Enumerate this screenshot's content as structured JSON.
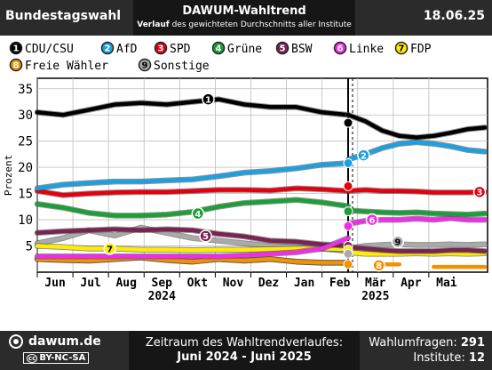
{
  "header": {
    "left": "Bundestagswahl",
    "title": "DAWUM-Wahltrend",
    "subtitle_bold": "Verlauf",
    "subtitle_rest": " des gewichteten Durchschnitts aller Institute",
    "date": "18.06.25"
  },
  "footer": {
    "site": "dawum.de",
    "license": "BY-NC-SA",
    "license_cc": "cc",
    "range_label": "Zeitraum des Wahltrendverlaufes:",
    "range": "Juni 2024 - Juni 2025",
    "polls_label": "Wahlumfragen:",
    "polls": "291",
    "institutes_label": "Institute:",
    "institutes": "12"
  },
  "chart_data": {
    "type": "line",
    "ylabel": "Prozent",
    "ylim": [
      0,
      37
    ],
    "yticks": [
      5,
      10,
      15,
      20,
      25,
      30,
      35
    ],
    "grid": true,
    "months": [
      "Jun",
      "Jul",
      "Aug",
      "Sep",
      "Okt",
      "Nov",
      "Dez",
      "Jan",
      "Feb",
      "Mär",
      "Apr",
      "Mai"
    ],
    "years": [
      {
        "label": "2024",
        "month": "Sep"
      },
      {
        "label": "2025",
        "month": "Mär"
      }
    ],
    "election_marker": "2025-02-23",
    "legend": [
      {
        "num": "1",
        "name": "CDU/CSU",
        "color": "#000000"
      },
      {
        "num": "2",
        "name": "AfD",
        "color": "#1ba1e2"
      },
      {
        "num": "3",
        "name": "SPD",
        "color": "#e3000f"
      },
      {
        "num": "4",
        "name": "Grüne",
        "color": "#1aa037"
      },
      {
        "num": "5",
        "name": "BSW",
        "color": "#792351"
      },
      {
        "num": "6",
        "name": "Linke",
        "color": "#ee2ee8"
      },
      {
        "num": "7",
        "name": "FDP",
        "color": "#ffed00"
      },
      {
        "num": "8",
        "name": "Freie Wähler",
        "color": "#f39200"
      },
      {
        "num": "9",
        "name": "Sonstige",
        "color": "#aaaaaa"
      }
    ],
    "series": [
      {
        "num": "1",
        "name": "CDU/CSU",
        "color": "#000000",
        "result": 28.5,
        "pre": [
          [
            0,
            30.5
          ],
          [
            1,
            30.0
          ],
          [
            2,
            31.0
          ],
          [
            3,
            32.0
          ],
          [
            4,
            32.3
          ],
          [
            5,
            32.0
          ],
          [
            6,
            32.5
          ],
          [
            7,
            33.0
          ],
          [
            8,
            32.0
          ],
          [
            9,
            31.5
          ],
          [
            10,
            31.5
          ],
          [
            11,
            30.5
          ],
          [
            12,
            30.0
          ]
        ],
        "post": [
          [
            0,
            30.0
          ],
          [
            1,
            28.8
          ],
          [
            2,
            27.0
          ],
          [
            3,
            26.0
          ],
          [
            4,
            25.7
          ],
          [
            5,
            26.0
          ],
          [
            6,
            26.6
          ],
          [
            7,
            27.3
          ],
          [
            8,
            27.6
          ]
        ]
      },
      {
        "num": "2",
        "name": "AfD",
        "color": "#1ba1e2",
        "result": 20.8,
        "pre": [
          [
            0,
            16.0
          ],
          [
            1,
            16.7
          ],
          [
            2,
            17.0
          ],
          [
            3,
            17.3
          ],
          [
            4,
            17.3
          ],
          [
            5,
            17.5
          ],
          [
            6,
            17.7
          ],
          [
            7,
            18.3
          ],
          [
            8,
            19.0
          ],
          [
            9,
            19.3
          ],
          [
            10,
            19.8
          ],
          [
            11,
            20.5
          ],
          [
            12,
            20.8
          ]
        ],
        "post": [
          [
            0,
            21.5
          ],
          [
            1,
            22.5
          ],
          [
            2,
            23.7
          ],
          [
            3,
            24.5
          ],
          [
            4,
            24.8
          ],
          [
            5,
            24.5
          ],
          [
            6,
            24.0
          ],
          [
            7,
            23.3
          ],
          [
            8,
            23.0
          ]
        ]
      },
      {
        "num": "3",
        "name": "SPD",
        "color": "#e3000f",
        "result": 16.4,
        "pre": [
          [
            0,
            15.5
          ],
          [
            1,
            14.7
          ],
          [
            2,
            15.0
          ],
          [
            3,
            15.2
          ],
          [
            4,
            15.3
          ],
          [
            5,
            15.3
          ],
          [
            6,
            15.5
          ],
          [
            7,
            15.7
          ],
          [
            8,
            15.7
          ],
          [
            9,
            15.6
          ],
          [
            10,
            16.0
          ],
          [
            11,
            15.8
          ],
          [
            12,
            15.5
          ]
        ],
        "post": [
          [
            0,
            15.5
          ],
          [
            1,
            15.7
          ],
          [
            2,
            15.5
          ],
          [
            3,
            15.5
          ],
          [
            4,
            15.4
          ],
          [
            5,
            15.2
          ],
          [
            6,
            15.2
          ],
          [
            7,
            15.2
          ],
          [
            8,
            15.3
          ]
        ]
      },
      {
        "num": "4",
        "name": "Grüne",
        "color": "#1aa037",
        "result": 11.6,
        "pre": [
          [
            0,
            13.0
          ],
          [
            1,
            12.3
          ],
          [
            2,
            11.3
          ],
          [
            3,
            10.8
          ],
          [
            4,
            10.8
          ],
          [
            5,
            11.0
          ],
          [
            6,
            11.5
          ],
          [
            7,
            12.5
          ],
          [
            8,
            13.2
          ],
          [
            9,
            13.5
          ],
          [
            10,
            13.8
          ],
          [
            11,
            13.3
          ],
          [
            12,
            12.6
          ]
        ],
        "post": [
          [
            0,
            11.8
          ],
          [
            1,
            11.6
          ],
          [
            2,
            11.4
          ],
          [
            3,
            11.3
          ],
          [
            4,
            11.4
          ],
          [
            5,
            11.2
          ],
          [
            6,
            11.1
          ],
          [
            7,
            11.0
          ],
          [
            8,
            11.2
          ]
        ]
      },
      {
        "num": "5",
        "name": "BSW",
        "color": "#792351",
        "result": 5.0,
        "pre": [
          [
            0,
            7.5
          ],
          [
            1,
            7.8
          ],
          [
            2,
            8.0
          ],
          [
            3,
            8.2
          ],
          [
            4,
            8.0
          ],
          [
            5,
            8.2
          ],
          [
            6,
            8.0
          ],
          [
            7,
            7.3
          ],
          [
            8,
            6.8
          ],
          [
            9,
            6.0
          ],
          [
            10,
            5.8
          ],
          [
            11,
            5.3
          ],
          [
            12,
            5.0
          ]
        ],
        "post": [
          [
            0,
            4.8
          ],
          [
            1,
            4.5
          ],
          [
            2,
            4.2
          ],
          [
            3,
            4.0
          ],
          [
            4,
            4.0
          ],
          [
            5,
            4.0
          ],
          [
            6,
            4.2
          ],
          [
            7,
            4.2
          ],
          [
            8,
            4.0
          ]
        ]
      },
      {
        "num": "6",
        "name": "Linke",
        "color": "#ee2ee8",
        "result": 8.8,
        "pre": [
          [
            0,
            3.0
          ],
          [
            1,
            3.0
          ],
          [
            2,
            3.0
          ],
          [
            3,
            3.0
          ],
          [
            4,
            3.0
          ],
          [
            5,
            3.0
          ],
          [
            6,
            3.0
          ],
          [
            7,
            3.0
          ],
          [
            8,
            3.2
          ],
          [
            9,
            3.5
          ],
          [
            10,
            3.8
          ],
          [
            11,
            4.5
          ],
          [
            12,
            6.5
          ]
        ],
        "post": [
          [
            0,
            9.2
          ],
          [
            1,
            9.8
          ],
          [
            2,
            10.0
          ],
          [
            3,
            10.0
          ],
          [
            4,
            10.2
          ],
          [
            5,
            10.0
          ],
          [
            6,
            10.3
          ],
          [
            7,
            10.0
          ],
          [
            8,
            10.0
          ]
        ]
      },
      {
        "num": "7",
        "name": "FDP",
        "color": "#ffed00",
        "result": 4.3,
        "pre": [
          [
            0,
            5.0
          ],
          [
            1,
            4.8
          ],
          [
            2,
            4.5
          ],
          [
            3,
            4.5
          ],
          [
            4,
            4.3
          ],
          [
            5,
            4.3
          ],
          [
            6,
            4.2
          ],
          [
            7,
            4.3
          ],
          [
            8,
            4.3
          ],
          [
            9,
            4.4
          ],
          [
            10,
            4.5
          ],
          [
            11,
            4.5
          ],
          [
            12,
            4.4
          ]
        ],
        "post": [
          [
            0,
            3.8
          ],
          [
            1,
            3.5
          ],
          [
            2,
            3.5
          ],
          [
            3,
            3.5
          ],
          [
            4,
            3.6
          ],
          [
            5,
            3.5
          ],
          [
            6,
            3.6
          ],
          [
            7,
            3.5
          ],
          [
            8,
            3.6
          ]
        ]
      },
      {
        "num": "8",
        "name": "Freie Wähler",
        "color": "#f39200",
        "result": 1.5,
        "pre": [
          [
            0,
            2.5
          ],
          [
            1,
            2.3
          ],
          [
            2,
            2.2
          ],
          [
            3,
            2.5
          ],
          [
            4,
            2.8
          ],
          [
            5,
            2.3
          ],
          [
            6,
            2.0
          ],
          [
            7,
            2.5
          ],
          [
            8,
            2.2
          ],
          [
            9,
            2.5
          ],
          [
            10,
            2.0
          ],
          [
            11,
            1.8
          ],
          [
            12,
            1.8
          ]
        ],
        "post": [
          [
            2,
            1.5
          ],
          [
            3,
            1.5
          ],
          [
            5,
            1.0
          ],
          [
            6,
            1.0
          ],
          [
            7,
            1.0
          ],
          [
            8,
            1.0
          ]
        ]
      },
      {
        "num": "9",
        "name": "Sonstige",
        "color": "#aaaaaa",
        "result": 3.5,
        "pre": [
          [
            0,
            5.5
          ],
          [
            1,
            6.5
          ],
          [
            2,
            8.0
          ],
          [
            3,
            7.0
          ],
          [
            4,
            8.5
          ],
          [
            5,
            7.5
          ],
          [
            6,
            6.5
          ],
          [
            7,
            6.0
          ],
          [
            8,
            5.5
          ],
          [
            9,
            5.0
          ],
          [
            10,
            4.8
          ],
          [
            11,
            4.5
          ],
          [
            12,
            4.0
          ]
        ],
        "post": [
          [
            0,
            4.5
          ],
          [
            1,
            5.0
          ],
          [
            2,
            5.2
          ],
          [
            3,
            5.3
          ],
          [
            4,
            5.2
          ],
          [
            5,
            5.2
          ],
          [
            6,
            5.3
          ],
          [
            7,
            5.2
          ],
          [
            8,
            5.3
          ]
        ]
      }
    ]
  }
}
